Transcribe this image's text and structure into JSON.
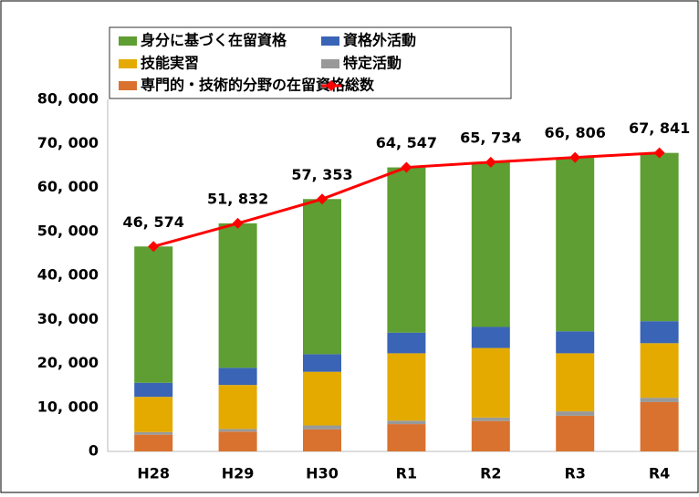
{
  "chart_data": {
    "type": "stacked_bar",
    "categories": [
      "H28",
      "H29",
      "H30",
      "R1",
      "R2",
      "R3",
      "R4"
    ],
    "series": [
      {
        "name": "専門的・技術的分野の在留資格",
        "color": "#d9722f",
        "values": [
          3800,
          4500,
          5000,
          6200,
          6900,
          8100,
          11200
        ]
      },
      {
        "name": "特定活動",
        "color": "#999999",
        "values": [
          600,
          600,
          900,
          800,
          800,
          1000,
          1000
        ]
      },
      {
        "name": "技能実習",
        "color": "#e4aa00",
        "values": [
          8000,
          10000,
          12200,
          15300,
          15800,
          13200,
          12400
        ]
      },
      {
        "name": "資格外活動",
        "color": "#3a64b5",
        "values": [
          3200,
          3900,
          4000,
          4700,
          4800,
          5000,
          5000
        ]
      },
      {
        "name": "身分に基づく在留資格",
        "color": "#5e9e32",
        "values": [
          30974,
          32832,
          35253,
          37547,
          37434,
          39506,
          38241
        ]
      }
    ],
    "line": {
      "name": "総数",
      "color": "#ff0000",
      "values": [
        46574,
        51832,
        57353,
        64547,
        65734,
        66806,
        67841
      ],
      "value_labels": [
        "46, 574",
        "51, 832",
        "57, 353",
        "64, 547",
        "65, 734",
        "66, 806",
        "67, 841"
      ]
    },
    "ylim": [
      0,
      80000
    ],
    "yticks": [
      0,
      {
        "value": 10000,
        "label": "10, 000"
      },
      {
        "value": 20000,
        "label": "20, 000"
      },
      {
        "value": 30000,
        "label": "30, 000"
      },
      {
        "value": 40000,
        "label": "40, 000"
      },
      {
        "value": 50000,
        "label": "50, 000"
      },
      {
        "value": 60000,
        "label": "60, 000"
      },
      {
        "value": 70000,
        "label": "70, 000"
      },
      {
        "value": 80000,
        "label": "80, 000"
      }
    ]
  }
}
